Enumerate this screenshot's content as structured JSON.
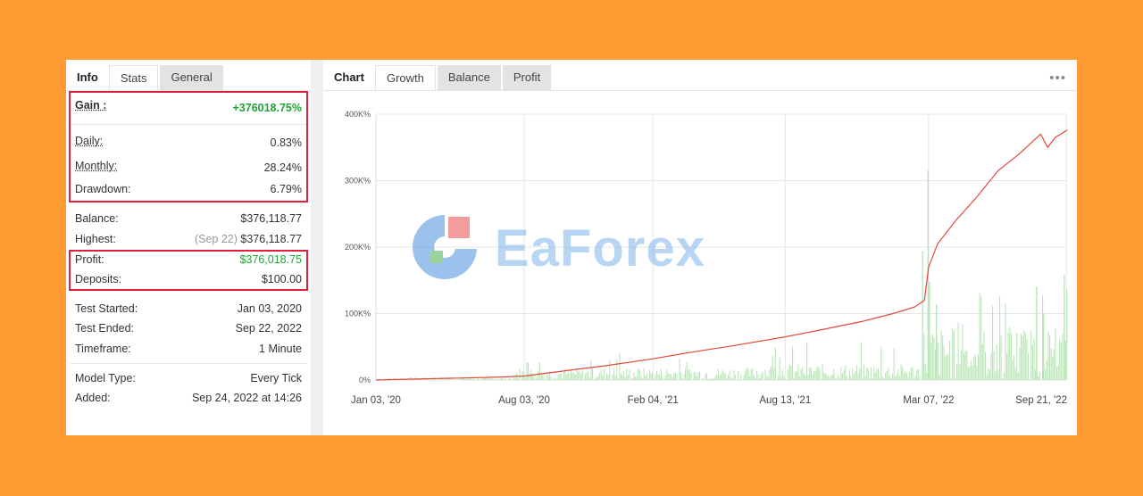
{
  "left_tabs": {
    "title": "Info",
    "stats": "Stats",
    "general": "General"
  },
  "gain": {
    "label": "Gain :",
    "value": "+376018.75%"
  },
  "daily": {
    "label": "Daily:",
    "value": "0.83%"
  },
  "monthly": {
    "label": "Monthly:",
    "value": "28.24%"
  },
  "drawdown": {
    "label": "Drawdown:",
    "value": "6.79%"
  },
  "balance": {
    "label": "Balance:",
    "value": "$376,118.77"
  },
  "highest": {
    "label": "Highest:",
    "date": "(Sep 22)",
    "value": "$376,118.77"
  },
  "profit": {
    "label": "Profit:",
    "value": "$376,018.75"
  },
  "deposits": {
    "label": "Deposits:",
    "value": "$100.00"
  },
  "test_started": {
    "label": "Test Started:",
    "value": "Jan 03, 2020"
  },
  "test_ended": {
    "label": "Test Ended:",
    "value": "Sep 22, 2022"
  },
  "timeframe": {
    "label": "Timeframe:",
    "value": "1 Minute"
  },
  "model_type": {
    "label": "Model Type:",
    "value": "Every Tick"
  },
  "added": {
    "label": "Added:",
    "value": "Sep 24, 2022 at 14:26"
  },
  "right_tabs": {
    "title": "Chart",
    "growth": "Growth",
    "balance": "Balance",
    "profit": "Profit"
  },
  "menu_icon": "more-dots-icon",
  "watermark": {
    "text": "EaForex"
  },
  "colors": {
    "background": "#FF9B33",
    "highlight_box": "#e0203c",
    "gain_green": "#1ea533",
    "growth_line": "#e04a3a",
    "bars": "#b9e6b6"
  },
  "chart_data": {
    "type": "line",
    "title": "",
    "xlabel": "",
    "ylabel": "",
    "x_tick_labels": [
      "Jan 03, '20",
      "Aug 03, '20",
      "Feb 04, '21",
      "Aug 13, '21",
      "Mar 07, '22",
      "Sep 21, '22"
    ],
    "y_tick_labels": [
      "0%",
      "100K%",
      "200K%",
      "300K%",
      "400K%"
    ],
    "ylim": [
      0,
      400000
    ],
    "grid": true,
    "series": [
      {
        "values": [
          [
            "2020-01-03",
            0
          ],
          [
            "2020-03-01",
            1500
          ],
          [
            "2020-05-01",
            3000
          ],
          [
            "2020-07-01",
            4500
          ],
          [
            "2020-08-03",
            6000
          ],
          [
            "2020-10-01",
            14000
          ],
          [
            "2020-12-01",
            22000
          ],
          [
            "2021-02-04",
            32000
          ],
          [
            "2021-04-01",
            42000
          ],
          [
            "2021-06-01",
            52000
          ],
          [
            "2021-08-13",
            65000
          ],
          [
            "2021-10-01",
            75000
          ],
          [
            "2021-12-01",
            88000
          ],
          [
            "2022-01-15",
            100000
          ],
          [
            "2022-02-15",
            110000
          ],
          [
            "2022-03-01",
            120000
          ],
          [
            "2022-03-07",
            170000
          ],
          [
            "2022-03-20",
            205000
          ],
          [
            "2022-04-15",
            240000
          ],
          [
            "2022-05-15",
            275000
          ],
          [
            "2022-06-15",
            315000
          ],
          [
            "2022-07-15",
            340000
          ],
          [
            "2022-08-15",
            370000
          ],
          [
            "2022-08-25",
            350000
          ],
          [
            "2022-09-05",
            365000
          ],
          [
            "2022-09-22",
            376018.75
          ]
        ]
      }
    ]
  }
}
